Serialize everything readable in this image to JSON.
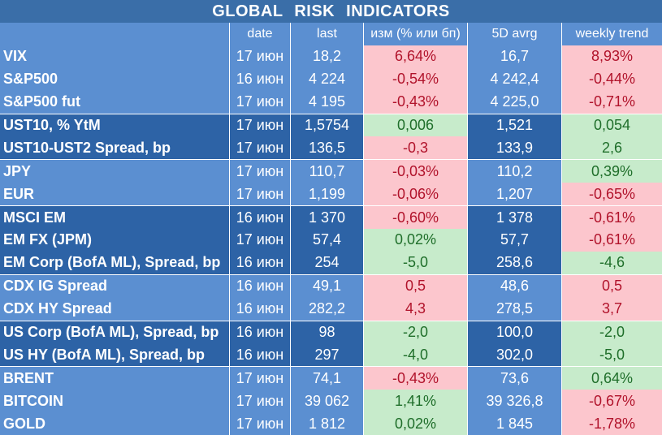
{
  "title": "GLOBAL   RISK   INDICATORS",
  "headers": {
    "name": "",
    "date": "date",
    "last": "last",
    "change": "изм (% или бп)",
    "avg": "5D avrg",
    "weekly": "weekly trend"
  },
  "rows": [
    {
      "name": "VIX",
      "date": "17 июн",
      "last": "18,2",
      "change": "6,64%",
      "change_sign": "neg",
      "avg": "16,7",
      "weekly": "8,93%",
      "weekly_sign": "neg",
      "shade": "light"
    },
    {
      "name": "S&P500",
      "date": "16 июн",
      "last": "4 224",
      "change": "-0,54%",
      "change_sign": "neg",
      "avg": "4 242,4",
      "weekly": "-0,44%",
      "weekly_sign": "neg",
      "shade": "light"
    },
    {
      "name": "S&P500 fut",
      "date": "17 июн",
      "last": "4 195",
      "change": "-0,43%",
      "change_sign": "neg",
      "avg": "4 225,0",
      "weekly": "-0,71%",
      "weekly_sign": "neg",
      "shade": "light"
    },
    {
      "name": "UST10, % YtM",
      "date": "17 июн",
      "last": "1,5754",
      "change": "0,006",
      "change_sign": "pos",
      "avg": "1,521",
      "weekly": "0,054",
      "weekly_sign": "pos",
      "shade": "dark"
    },
    {
      "name": "UST10-UST2 Spread, bp",
      "date": "17 июн",
      "last": "136,5",
      "change": "-0,3",
      "change_sign": "neg",
      "avg": "133,9",
      "weekly": "2,6",
      "weekly_sign": "pos",
      "shade": "dark"
    },
    {
      "name": "JPY",
      "date": "17 июн",
      "last": "110,7",
      "change": "-0,03%",
      "change_sign": "neg",
      "avg": "110,2",
      "weekly": "0,39%",
      "weekly_sign": "pos",
      "shade": "light"
    },
    {
      "name": "EUR",
      "date": "17 июн",
      "last": "1,199",
      "change": "-0,06%",
      "change_sign": "neg",
      "avg": "1,207",
      "weekly": "-0,65%",
      "weekly_sign": "neg",
      "shade": "light"
    },
    {
      "name": "MSCI EM",
      "date": "16 июн",
      "last": "1 370",
      "change": "-0,60%",
      "change_sign": "neg",
      "avg": "1 378",
      "weekly": "-0,61%",
      "weekly_sign": "neg",
      "shade": "dark"
    },
    {
      "name": "EM FX (JPM)",
      "date": "17 июн",
      "last": "57,4",
      "change": "0,02%",
      "change_sign": "pos",
      "avg": "57,7",
      "weekly": "-0,61%",
      "weekly_sign": "neg",
      "shade": "dark"
    },
    {
      "name": "EM Corp (BofA ML), Spread, bp",
      "date": "16 июн",
      "last": "254",
      "change": "-5,0",
      "change_sign": "pos",
      "avg": "258,6",
      "weekly": "-4,6",
      "weekly_sign": "pos",
      "shade": "dark"
    },
    {
      "name": "CDX IG Spread",
      "date": "16 июн",
      "last": "49,1",
      "change": "0,5",
      "change_sign": "neg",
      "avg": "48,6",
      "weekly": "0,5",
      "weekly_sign": "neg",
      "shade": "light"
    },
    {
      "name": "CDX HY Spread",
      "date": "16 июн",
      "last": "282,2",
      "change": "4,3",
      "change_sign": "neg",
      "avg": "278,5",
      "weekly": "3,7",
      "weekly_sign": "neg",
      "shade": "light"
    },
    {
      "name": "US Corp (BofA ML), Spread, bp",
      "date": "16 июн",
      "last": "98",
      "change": "-2,0",
      "change_sign": "pos",
      "avg": "100,0",
      "weekly": "-2,0",
      "weekly_sign": "pos",
      "shade": "dark"
    },
    {
      "name": "US HY (BofA ML), Spread, bp",
      "date": "16 июн",
      "last": "297",
      "change": "-4,0",
      "change_sign": "pos",
      "avg": "302,0",
      "weekly": "-5,0",
      "weekly_sign": "pos",
      "shade": "dark"
    },
    {
      "name": "BRENT",
      "date": "17 июн",
      "last": "74,1",
      "change": "-0,43%",
      "change_sign": "neg",
      "avg": "73,6",
      "weekly": "0,64%",
      "weekly_sign": "pos",
      "shade": "light"
    },
    {
      "name": "BITCOIN",
      "date": "17 июн",
      "last": "39 062",
      "change": "1,41%",
      "change_sign": "pos",
      "avg": "39 326,8",
      "weekly": "-0,67%",
      "weekly_sign": "neg",
      "shade": "light"
    },
    {
      "name": "GOLD",
      "date": "17 июн",
      "last": "1 812",
      "change": "0,02%",
      "change_sign": "pos",
      "avg": "1 845",
      "weekly": "-1,78%",
      "weekly_sign": "neg",
      "shade": "light"
    }
  ]
}
